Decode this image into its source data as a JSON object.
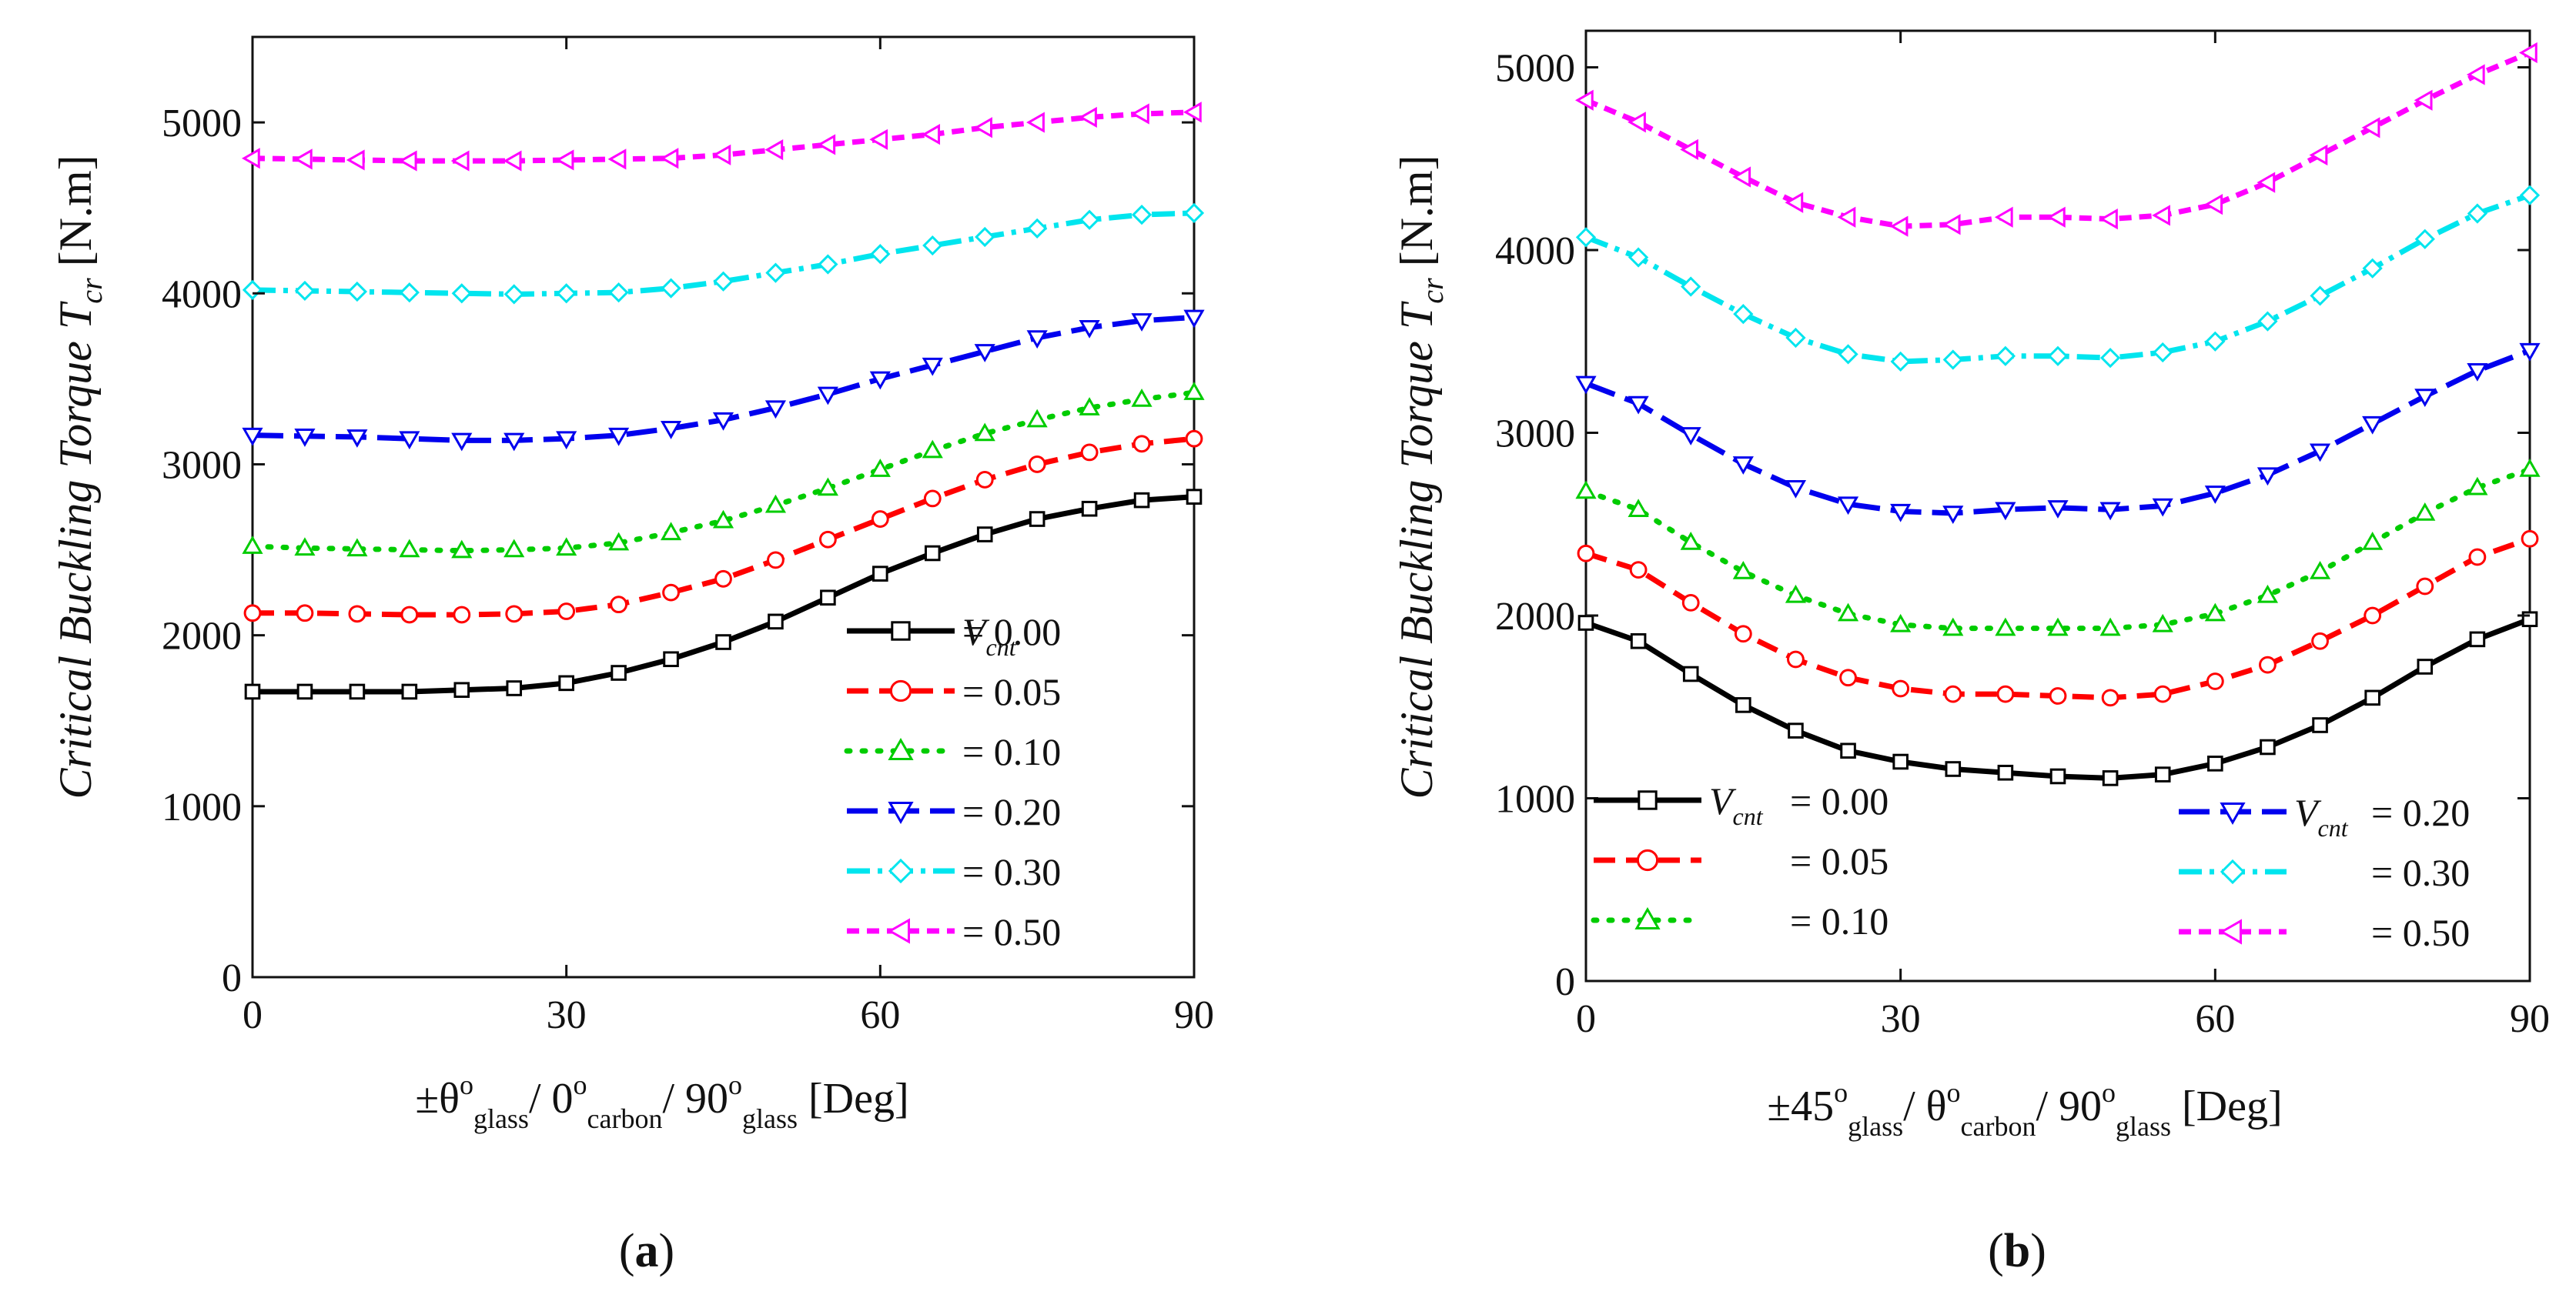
{
  "chart_data": [
    {
      "type": "line",
      "panel_caption": "a",
      "ylabel": "Critical Buckling Torque",
      "ylabel_symbol": "T",
      "ylabel_symbol_sub": "cr",
      "ylabel_unit": "[N.m]",
      "xlabel": {
        "p1": "±θ",
        "s1": "o",
        "b1": "glass",
        "p2": "/ 0",
        "s2": "o",
        "b2": "carbon",
        "p3": "/ 90",
        "s3": "o",
        "b3": "glass",
        "unit": " [Deg]"
      },
      "xlim": [
        0,
        90
      ],
      "ylim": [
        0,
        5500
      ],
      "xticks": [
        "0",
        "30",
        "60",
        "90"
      ],
      "yticks": [
        "0",
        "1000",
        "2000",
        "3000",
        "4000",
        "5000"
      ],
      "x": [
        0,
        5,
        10,
        15,
        20,
        25,
        30,
        35,
        40,
        45,
        50,
        55,
        60,
        65,
        70,
        75,
        80,
        85,
        90
      ],
      "legend": {
        "var": "V",
        "var_sub": "cnt",
        "position": "bottom-right",
        "layout": "single-column"
      },
      "series": [
        {
          "name": "= 0.00",
          "color": "#000000",
          "marker": "square",
          "dash": "solid",
          "values": [
            1670,
            1670,
            1670,
            1670,
            1680,
            1690,
            1720,
            1780,
            1860,
            1960,
            2080,
            2220,
            2360,
            2480,
            2590,
            2680,
            2740,
            2790,
            2810
          ]
        },
        {
          "name": "= 0.05",
          "color": "#ff0000",
          "marker": "circle",
          "dash": "dash",
          "values": [
            2130,
            2130,
            2125,
            2120,
            2120,
            2125,
            2140,
            2180,
            2250,
            2330,
            2440,
            2560,
            2680,
            2800,
            2910,
            3000,
            3070,
            3120,
            3150
          ]
        },
        {
          "name": "= 0.10",
          "color": "#00cc00",
          "marker": "triangle-up",
          "dash": "dot",
          "values": [
            2520,
            2510,
            2505,
            2500,
            2495,
            2500,
            2510,
            2540,
            2600,
            2670,
            2760,
            2860,
            2970,
            3080,
            3180,
            3260,
            3330,
            3380,
            3420
          ]
        },
        {
          "name": "= 0.20",
          "color": "#0000ee",
          "marker": "triangle-down",
          "dash": "longdash",
          "values": [
            3170,
            3165,
            3160,
            3150,
            3140,
            3140,
            3150,
            3170,
            3210,
            3260,
            3330,
            3410,
            3500,
            3580,
            3660,
            3740,
            3800,
            3840,
            3860
          ]
        },
        {
          "name": "= 0.30",
          "color": "#00e5ee",
          "marker": "diamond",
          "dash": "dashdot",
          "values": [
            4020,
            4015,
            4010,
            4005,
            4000,
            3995,
            4000,
            4005,
            4030,
            4070,
            4120,
            4170,
            4230,
            4280,
            4330,
            4380,
            4430,
            4460,
            4470
          ]
        },
        {
          "name": "= 0.50",
          "color": "#ff00ff",
          "marker": "triangle-left",
          "dash": "shortdash",
          "values": [
            4790,
            4785,
            4780,
            4775,
            4775,
            4775,
            4780,
            4785,
            4790,
            4810,
            4840,
            4870,
            4900,
            4930,
            4970,
            5000,
            5030,
            5050,
            5060
          ]
        }
      ]
    },
    {
      "type": "line",
      "panel_caption": "b",
      "ylabel": "Critical Buckling Torque",
      "ylabel_symbol": "T",
      "ylabel_symbol_sub": "cr",
      "ylabel_unit": "[N.m]",
      "xlabel": {
        "p1": "±45",
        "s1": "o",
        "b1": "glass",
        "p2": "/ θ",
        "s2": "o",
        "b2": "carbon",
        "p3": "/ 90",
        "s3": "o",
        "b3": "glass",
        "unit": "  [Deg]"
      },
      "xlim": [
        0,
        90
      ],
      "ylim": [
        0,
        5200
      ],
      "xticks": [
        "0",
        "30",
        "60",
        "90"
      ],
      "yticks": [
        "0",
        "1000",
        "2000",
        "3000",
        "4000",
        "5000"
      ],
      "x": [
        0,
        5,
        10,
        15,
        20,
        25,
        30,
        35,
        40,
        45,
        50,
        55,
        60,
        65,
        70,
        75,
        80,
        85,
        90
      ],
      "legend": {
        "var": "V",
        "var_sub": "cnt",
        "position": "bottom",
        "layout": "two-column"
      },
      "series": [
        {
          "name": "= 0.00",
          "color": "#000000",
          "marker": "square",
          "dash": "solid",
          "values": [
            1960,
            1860,
            1680,
            1510,
            1370,
            1260,
            1200,
            1160,
            1140,
            1120,
            1110,
            1130,
            1190,
            1280,
            1400,
            1550,
            1720,
            1870,
            1980
          ]
        },
        {
          "name": "= 0.05",
          "color": "#ff0000",
          "marker": "circle",
          "dash": "dash",
          "values": [
            2340,
            2250,
            2070,
            1900,
            1760,
            1660,
            1600,
            1570,
            1570,
            1560,
            1550,
            1570,
            1640,
            1730,
            1860,
            2000,
            2160,
            2320,
            2420
          ]
        },
        {
          "name": "= 0.10",
          "color": "#00cc00",
          "marker": "triangle-up",
          "dash": "dot",
          "values": [
            2680,
            2580,
            2400,
            2240,
            2110,
            2010,
            1950,
            1930,
            1930,
            1930,
            1930,
            1950,
            2010,
            2110,
            2240,
            2400,
            2560,
            2700,
            2800
          ]
        },
        {
          "name": "= 0.20",
          "color": "#0000ee",
          "marker": "triangle-down",
          "dash": "longdash",
          "values": [
            3270,
            3160,
            2990,
            2830,
            2700,
            2610,
            2570,
            2560,
            2580,
            2590,
            2580,
            2600,
            2670,
            2770,
            2900,
            3050,
            3200,
            3340,
            3450
          ]
        },
        {
          "name": "= 0.30",
          "color": "#00e5ee",
          "marker": "diamond",
          "dash": "dashdot",
          "values": [
            4070,
            3960,
            3800,
            3650,
            3520,
            3430,
            3390,
            3400,
            3420,
            3420,
            3410,
            3440,
            3500,
            3610,
            3750,
            3900,
            4060,
            4200,
            4300
          ]
        },
        {
          "name": "= 0.50",
          "color": "#ff00ff",
          "marker": "triangle-left",
          "dash": "shortdash",
          "values": [
            4820,
            4700,
            4550,
            4400,
            4260,
            4180,
            4130,
            4140,
            4180,
            4180,
            4170,
            4190,
            4250,
            4370,
            4520,
            4670,
            4820,
            4960,
            5080
          ]
        }
      ]
    }
  ]
}
